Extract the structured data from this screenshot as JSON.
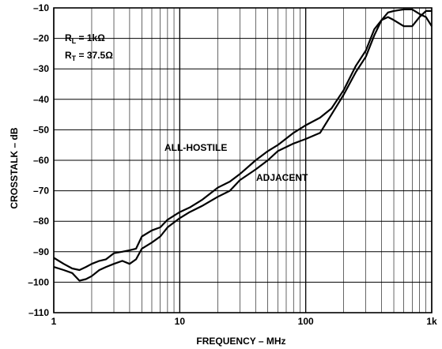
{
  "chart_data": {
    "type": "line",
    "title": "",
    "xlabel": "FREQUENCY – MHz",
    "ylabel": "CROSSTALK – dB",
    "xscale": "log",
    "xlim": [
      1,
      1000
    ],
    "ylim": [
      -110,
      -10
    ],
    "x_ticks": [
      {
        "value": 1,
        "label": "1"
      },
      {
        "value": 10,
        "label": "10"
      },
      {
        "value": 100,
        "label": "100"
      },
      {
        "value": 1000,
        "label": "1k"
      }
    ],
    "y_ticks": [
      {
        "value": -10,
        "label": "–10"
      },
      {
        "value": -20,
        "label": "–20"
      },
      {
        "value": -30,
        "label": "–30"
      },
      {
        "value": -40,
        "label": "–40"
      },
      {
        "value": -50,
        "label": "–50"
      },
      {
        "value": -60,
        "label": "–60"
      },
      {
        "value": -70,
        "label": "–70"
      },
      {
        "value": -80,
        "label": "–80"
      },
      {
        "value": -90,
        "label": "–90"
      },
      {
        "value": -100,
        "label": "–100"
      },
      {
        "value": -110,
        "label": "–110"
      }
    ],
    "grid": true,
    "conditions": {
      "rl": {
        "sym": "R",
        "sub": "L",
        "rest": " = 1kΩ"
      },
      "rt": {
        "sym": "R",
        "sub": "T",
        "rest": " = 37.5Ω"
      }
    },
    "series": [
      {
        "name": "ALL-HOSTILE",
        "points": [
          [
            1,
            -92
          ],
          [
            1.2,
            -94
          ],
          [
            1.4,
            -95.5
          ],
          [
            1.6,
            -96
          ],
          [
            1.8,
            -95
          ],
          [
            2,
            -94
          ],
          [
            2.3,
            -93
          ],
          [
            2.6,
            -92.5
          ],
          [
            3,
            -90.5
          ],
          [
            3.5,
            -90
          ],
          [
            4,
            -89.5
          ],
          [
            4.5,
            -89
          ],
          [
            5,
            -85
          ],
          [
            6,
            -83
          ],
          [
            7,
            -82
          ],
          [
            8,
            -79.5
          ],
          [
            10,
            -77
          ],
          [
            12,
            -75.5
          ],
          [
            15,
            -73
          ],
          [
            20,
            -69
          ],
          [
            25,
            -67
          ],
          [
            30,
            -64.5
          ],
          [
            40,
            -60
          ],
          [
            50,
            -57
          ],
          [
            60,
            -55
          ],
          [
            80,
            -51
          ],
          [
            100,
            -48.5
          ],
          [
            130,
            -46
          ],
          [
            160,
            -43
          ],
          [
            200,
            -37
          ],
          [
            250,
            -29
          ],
          [
            300,
            -24
          ],
          [
            350,
            -17
          ],
          [
            400,
            -14
          ],
          [
            450,
            -13
          ],
          [
            500,
            -14
          ],
          [
            600,
            -16
          ],
          [
            700,
            -16
          ],
          [
            800,
            -13
          ],
          [
            900,
            -11
          ],
          [
            1000,
            -11
          ]
        ]
      },
      {
        "name": "ADJACENT",
        "points": [
          [
            1,
            -95
          ],
          [
            1.2,
            -96
          ],
          [
            1.4,
            -97
          ],
          [
            1.6,
            -99.5
          ],
          [
            1.8,
            -99
          ],
          [
            2,
            -98
          ],
          [
            2.3,
            -96
          ],
          [
            2.6,
            -95
          ],
          [
            3,
            -94
          ],
          [
            3.5,
            -93
          ],
          [
            4,
            -94
          ],
          [
            4.5,
            -92.5
          ],
          [
            5,
            -89
          ],
          [
            6,
            -87
          ],
          [
            7,
            -85
          ],
          [
            8,
            -82
          ],
          [
            10,
            -79
          ],
          [
            12,
            -77
          ],
          [
            15,
            -75
          ],
          [
            20,
            -72
          ],
          [
            25,
            -70
          ],
          [
            30,
            -66.5
          ],
          [
            40,
            -63
          ],
          [
            50,
            -60
          ],
          [
            60,
            -57
          ],
          [
            80,
            -54.5
          ],
          [
            100,
            -53
          ],
          [
            130,
            -51
          ],
          [
            160,
            -45
          ],
          [
            200,
            -38.5
          ],
          [
            250,
            -31
          ],
          [
            300,
            -26
          ],
          [
            350,
            -19
          ],
          [
            400,
            -14
          ],
          [
            450,
            -11.5
          ],
          [
            500,
            -11
          ],
          [
            600,
            -10.5
          ],
          [
            700,
            -10.5
          ],
          [
            800,
            -12
          ],
          [
            900,
            -13
          ],
          [
            1000,
            -16
          ]
        ]
      }
    ]
  }
}
